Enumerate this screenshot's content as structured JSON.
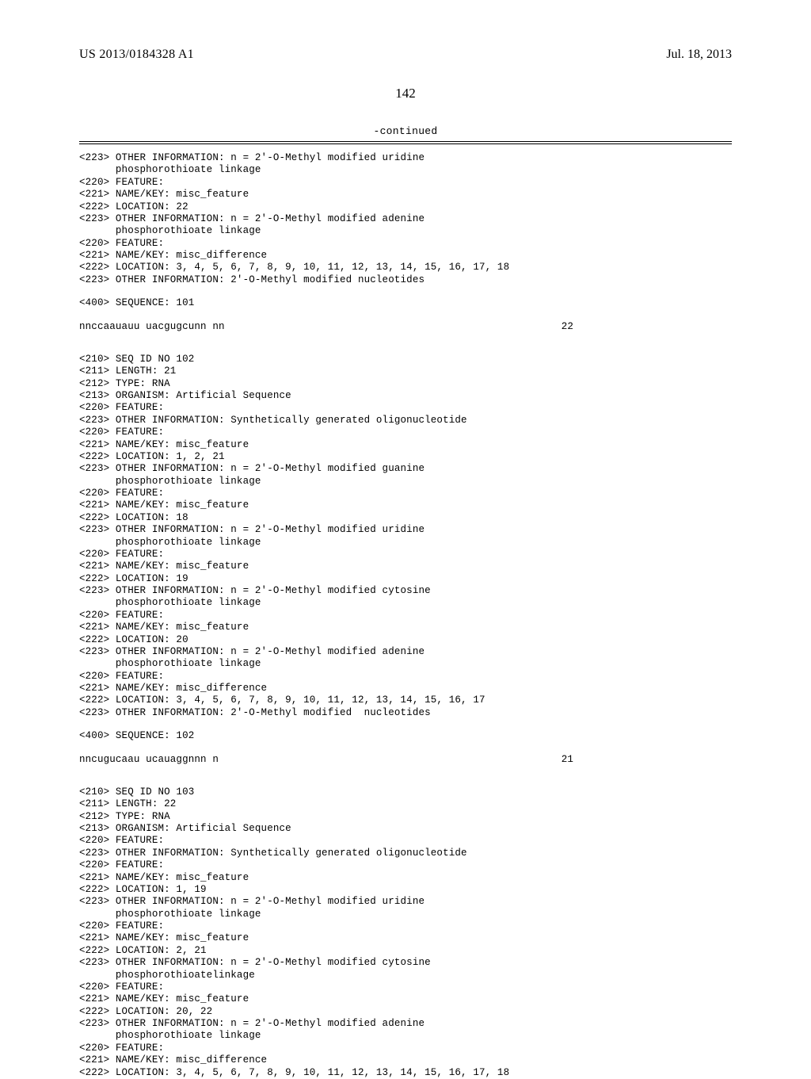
{
  "header": {
    "publication_number": "US 2013/0184328 A1",
    "publication_date": "Jul. 18, 2013",
    "page_number": "142",
    "continued_label": "-continued"
  },
  "listing": {
    "font_family": "Courier New",
    "font_size_pt": 9.5,
    "line_height": 1.23,
    "text_color": "#000000",
    "background_color": "#ffffff"
  },
  "entries": [
    {
      "pre_lines": [
        "<223> OTHER INFORMATION: n = 2'-O-Methyl modified uridine",
        "      phosphorothioate linkage",
        "<220> FEATURE:",
        "<221> NAME/KEY: misc_feature",
        "<222> LOCATION: 22",
        "<223> OTHER INFORMATION: n = 2'-O-Methyl modified adenine",
        "      phosphorothioate linkage",
        "<220> FEATURE:",
        "<221> NAME/KEY: misc_difference",
        "<222> LOCATION: 3, 4, 5, 6, 7, 8, 9, 10, 11, 12, 13, 14, 15, 16, 17, 18",
        "<223> OTHER INFORMATION: 2'-O-Methyl modified nucleotides"
      ],
      "sequence_header": "<400> SEQUENCE: 101",
      "sequence": "nnccaauauu uacgugcunn nn",
      "length": "22"
    },
    {
      "pre_lines": [
        "<210> SEQ ID NO 102",
        "<211> LENGTH: 21",
        "<212> TYPE: RNA",
        "<213> ORGANISM: Artificial Sequence",
        "<220> FEATURE:",
        "<223> OTHER INFORMATION: Synthetically generated oligonucleotide",
        "<220> FEATURE:",
        "<221> NAME/KEY: misc_feature",
        "<222> LOCATION: 1, 2, 21",
        "<223> OTHER INFORMATION: n = 2'-O-Methyl modified guanine",
        "      phosphorothioate linkage",
        "<220> FEATURE:",
        "<221> NAME/KEY: misc_feature",
        "<222> LOCATION: 18",
        "<223> OTHER INFORMATION: n = 2'-O-Methyl modified uridine",
        "      phosphorothioate linkage",
        "<220> FEATURE:",
        "<221> NAME/KEY: misc_feature",
        "<222> LOCATION: 19",
        "<223> OTHER INFORMATION: n = 2'-O-Methyl modified cytosine",
        "      phosphorothioate linkage",
        "<220> FEATURE:",
        "<221> NAME/KEY: misc_feature",
        "<222> LOCATION: 20",
        "<223> OTHER INFORMATION: n = 2'-O-Methyl modified adenine",
        "      phosphorothioate linkage",
        "<220> FEATURE:",
        "<221> NAME/KEY: misc_difference",
        "<222> LOCATION: 3, 4, 5, 6, 7, 8, 9, 10, 11, 12, 13, 14, 15, 16, 17",
        "<223> OTHER INFORMATION: 2'-O-Methyl modified  nucleotides"
      ],
      "sequence_header": "<400> SEQUENCE: 102",
      "sequence": "nncugucaau ucauaggnnn n",
      "length": "21"
    },
    {
      "pre_lines": [
        "<210> SEQ ID NO 103",
        "<211> LENGTH: 22",
        "<212> TYPE: RNA",
        "<213> ORGANISM: Artificial Sequence",
        "<220> FEATURE:",
        "<223> OTHER INFORMATION: Synthetically generated oligonucleotide",
        "<220> FEATURE:",
        "<221> NAME/KEY: misc_feature",
        "<222> LOCATION: 1, 19",
        "<223> OTHER INFORMATION: n = 2'-O-Methyl modified uridine",
        "      phosphorothioate linkage",
        "<220> FEATURE:",
        "<221> NAME/KEY: misc_feature",
        "<222> LOCATION: 2, 21",
        "<223> OTHER INFORMATION: n = 2'-O-Methyl modified cytosine",
        "      phosphorothioatelinkage",
        "<220> FEATURE:",
        "<221> NAME/KEY: misc_feature",
        "<222> LOCATION: 20, 22",
        "<223> OTHER INFORMATION: n = 2'-O-Methyl modified adenine",
        "      phosphorothioate linkage",
        "<220> FEATURE:",
        "<221> NAME/KEY: misc_difference",
        "<222> LOCATION: 3, 4, 5, 6, 7, 8, 9, 10, 11, 12, 13, 14, 15, 16, 17, 18"
      ]
    }
  ]
}
